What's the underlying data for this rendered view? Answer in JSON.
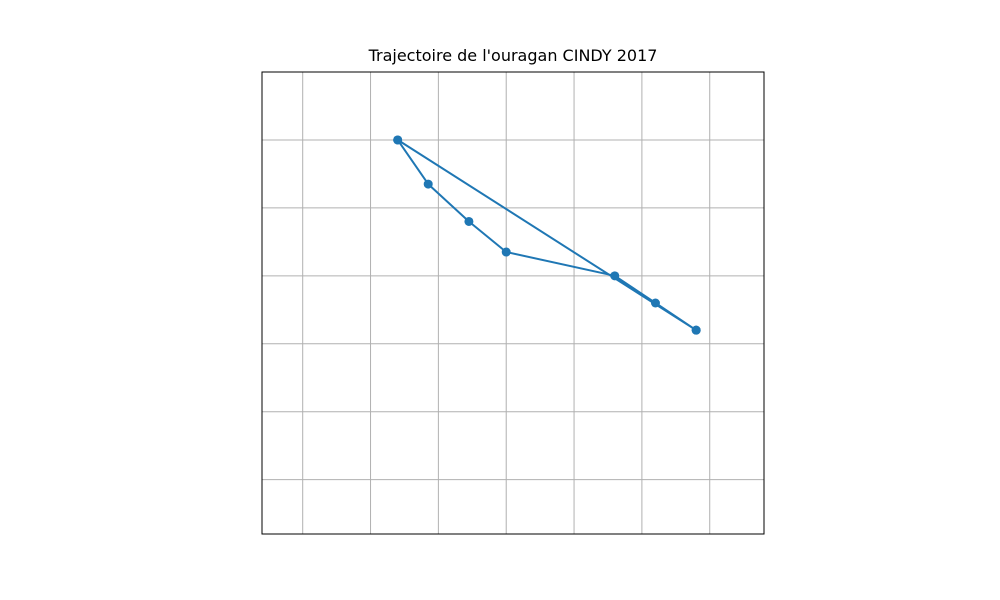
{
  "chart_data": {
    "type": "line",
    "title": "Trajectoire de l'ouragan CINDY 2017",
    "xlabel": "",
    "ylabel": "",
    "x_gridlines": [
      0,
      1,
      2,
      3,
      4,
      5,
      6
    ],
    "y_gridlines": [
      0,
      1,
      2,
      3,
      4,
      5
    ],
    "xlim": [
      -0.6,
      6.8
    ],
    "ylim": [
      -0.8,
      6
    ],
    "grid": true,
    "line_color": "#1f77b4",
    "series": [
      {
        "x": [
          1.4,
          5.8,
          5.2,
          4.6,
          3.0,
          2.45,
          1.85,
          1.4,
          5.8
        ],
        "y": [
          5.0,
          2.2,
          2.6,
          3.0,
          3.35,
          3.8,
          4.35,
          5.0,
          2.2
        ]
      }
    ]
  }
}
